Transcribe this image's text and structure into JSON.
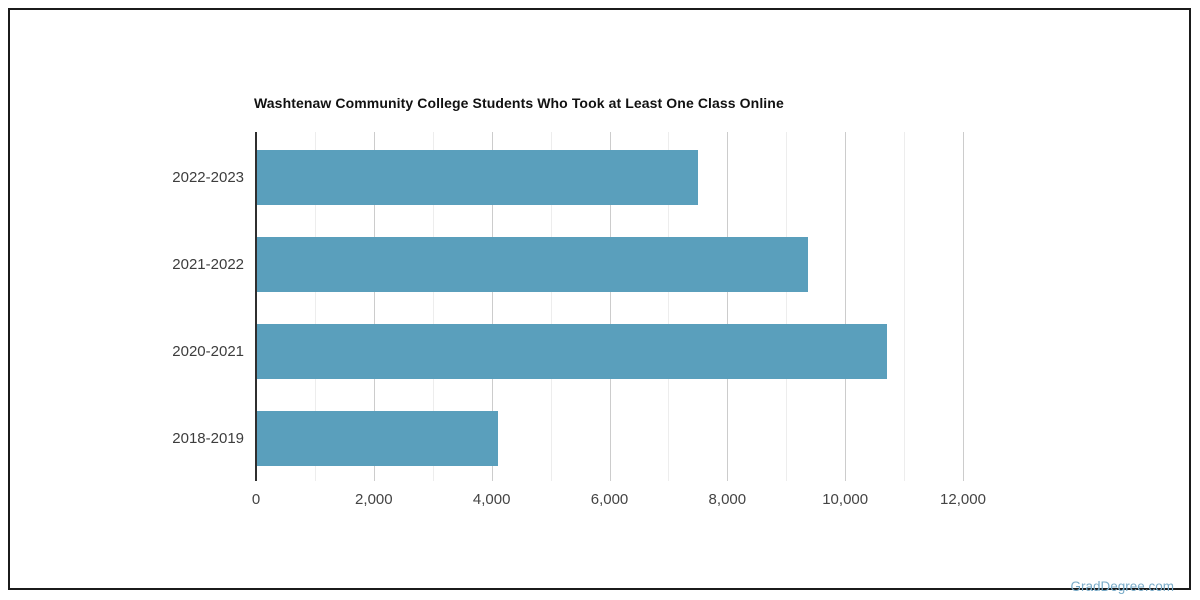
{
  "chart_data": {
    "type": "bar",
    "orientation": "horizontal",
    "title": "Washtenaw Community College Students Who Took at Least One Class Online",
    "categories": [
      "2022-2023",
      "2021-2022",
      "2020-2021",
      "2018-2019"
    ],
    "values": [
      7490,
      9350,
      10700,
      4090
    ],
    "xlabel": "",
    "ylabel": "",
    "xlim": [
      0,
      12000
    ],
    "x_tick_interval": 2000,
    "x_gridline_interval": 1000,
    "x_tick_labels": [
      "0",
      "2,000",
      "4,000",
      "6,000",
      "8,000",
      "10,000",
      "12,000"
    ],
    "grid": true,
    "legend": "none",
    "bar_color": "#5A9FBC",
    "gridline_major_color": "#cccccc",
    "gridline_minor_color": "#ededed",
    "axis_line_color": "#2f2f2f"
  },
  "watermark": {
    "text": "GradDegree.com",
    "color": "#79ABC8"
  }
}
